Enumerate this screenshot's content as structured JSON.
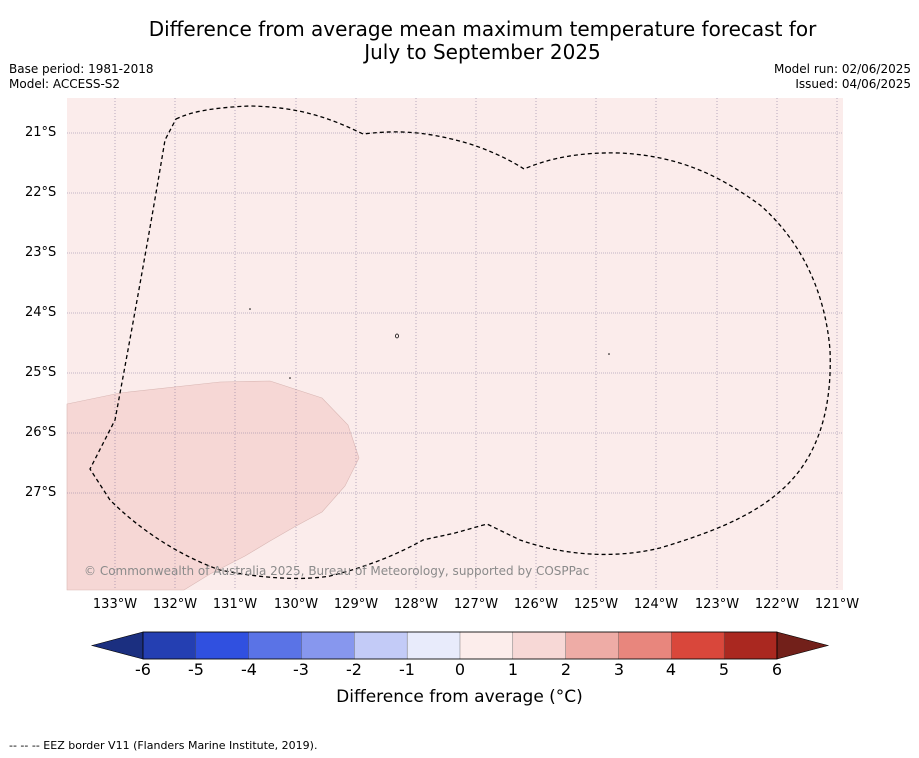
{
  "title_line1": "Difference from average mean maximum temperature forecast for",
  "title_line2": "July to September 2025",
  "base_period": "Base period: 1981-2018",
  "model": "Model: ACCESS-S2",
  "model_run": "Model run: 02/06/2025",
  "issued": "Issued: 04/06/2025",
  "latitudes": [
    "21°S",
    "22°S",
    "23°S",
    "24°S",
    "25°S",
    "26°S",
    "27°S"
  ],
  "longitudes": [
    "133°W",
    "132°W",
    "131°W",
    "130°W",
    "129°W",
    "128°W",
    "127°W",
    "126°W",
    "125°W",
    "124°W",
    "123°W",
    "122°W",
    "121°W"
  ],
  "credit": "© Commonwealth of Australia 2025, Bureau of Meteorology, supported by COSPPac",
  "colorbar": {
    "ticks": [
      "-6",
      "-5",
      "-4",
      "-3",
      "-2",
      "-1",
      "0",
      "1",
      "2",
      "3",
      "4",
      "5",
      "6"
    ],
    "colors": [
      "#1b2f80",
      "#243fb2",
      "#3050e0",
      "#5a73e6",
      "#8797ee",
      "#c3cbf7",
      "#e8ebfb",
      "#fcedeb",
      "#f7d8d6",
      "#eeaca6",
      "#e8867d",
      "#d9473b",
      "#aa2820",
      "#72201a"
    ],
    "label": "Difference from average (°C)"
  },
  "map_fills": {
    "ocean_anomaly_0_1": "#fbeceb",
    "anomaly_1_2": "#f6d7d5"
  },
  "footer": "--  --  -- EEZ border V11 (Flanders Marine Institute, 2019)."
}
